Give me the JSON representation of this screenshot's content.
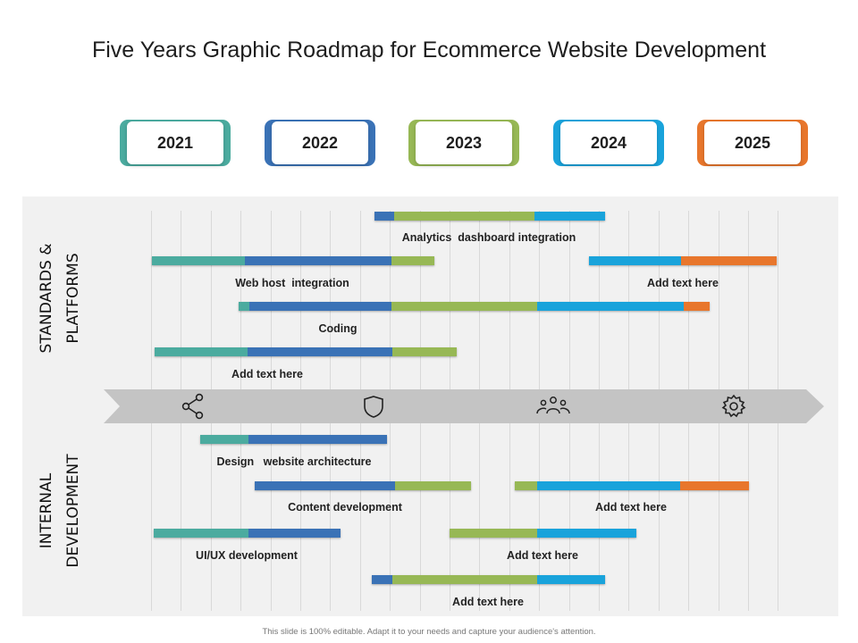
{
  "title": "Five Years Graphic Roadmap for Ecommerce Website Development",
  "colors": {
    "teal": "#4bab9f",
    "blue": "#3a72b6",
    "green": "#97b855",
    "cyan": "#19a3db",
    "orange": "#e8762c",
    "panel": "#f1f1f1",
    "arrow": "#c4c4c4"
  },
  "years": [
    {
      "label": "2021",
      "color": "#4bab9f"
    },
    {
      "label": "2022",
      "color": "#3a72b6"
    },
    {
      "label": "2023",
      "color": "#97b855"
    },
    {
      "label": "2024",
      "color": "#19a3db"
    },
    {
      "label": "2025",
      "color": "#e8762c"
    }
  ],
  "sections": {
    "top": "STANDARDS & PLATFORMS",
    "bottom": "INTERNAL DEVELOPMENT"
  },
  "arrow_icons": [
    "share-icon",
    "shield-icon",
    "team-icon",
    "gear-icon"
  ],
  "tasks": {
    "analytics": {
      "label": "Analytics  dashboard integration",
      "segments": [
        "blue",
        "green",
        "cyan"
      ]
    },
    "webhost": {
      "label": "Web host  integration",
      "segments": [
        "teal",
        "blue",
        "green"
      ]
    },
    "addtext_top_right": {
      "label": "Add text here",
      "segments": [
        "cyan",
        "orange"
      ]
    },
    "coding": {
      "label": "Coding",
      "segments": [
        "teal",
        "blue",
        "green",
        "cyan",
        "orange"
      ]
    },
    "addtext_top_left": {
      "label": "Add text here",
      "segments": [
        "teal",
        "blue",
        "green"
      ]
    },
    "design": {
      "label": "Design   website architecture",
      "segments": [
        "teal",
        "blue"
      ]
    },
    "content": {
      "label": "Content development",
      "segments": [
        "blue",
        "green"
      ]
    },
    "addtext_mid_right": {
      "label": "Add text here",
      "segments": [
        "green",
        "cyan",
        "orange"
      ]
    },
    "uiux": {
      "label": "UI/UX development",
      "segments": [
        "teal",
        "blue"
      ]
    },
    "addtext_mid": {
      "label": "Add text here",
      "segments": [
        "green",
        "cyan"
      ]
    },
    "addtext_bottom": {
      "label": "Add text here",
      "segments": [
        "blue",
        "green",
        "cyan"
      ]
    }
  },
  "footer": "This slide is 100% editable. Adapt it to your needs and capture your audience's attention."
}
